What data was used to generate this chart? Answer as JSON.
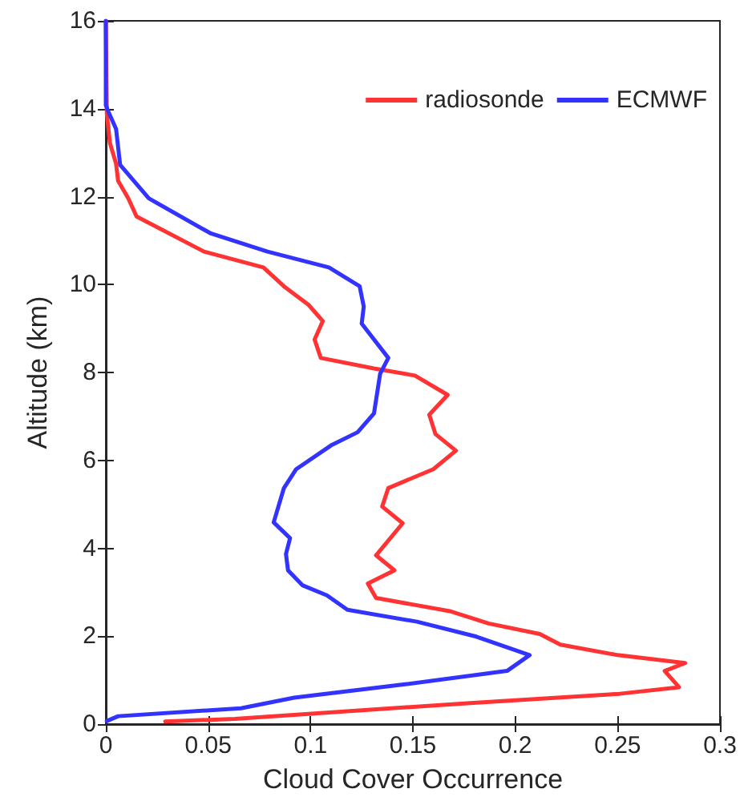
{
  "chart_data": {
    "type": "line",
    "xlabel": "Cloud Cover Occurrence",
    "ylabel": "Altitude (km)",
    "xlim": [
      0,
      0.3
    ],
    "xticks": [
      0,
      0.05,
      0.1,
      0.15,
      0.2,
      0.25,
      0.3
    ],
    "ylim": [
      0,
      16
    ],
    "yticks": [
      0,
      2,
      4,
      6,
      8,
      10,
      12,
      14,
      16
    ],
    "legend": "top right",
    "grid": false,
    "marker": "none",
    "line_style": "solid",
    "series": [
      {
        "name": "radiosonde",
        "color": "#ff3333",
        "x": [
          0.029,
          0.063,
          0.178,
          0.251,
          0.28,
          0.273,
          0.283,
          0.25,
          0.222,
          0.212,
          0.187,
          0.168,
          0.132,
          0.128,
          0.141,
          0.132,
          0.145,
          0.135,
          0.138,
          0.16,
          0.171,
          0.161,
          0.158,
          0.167,
          0.151,
          0.131,
          0.105,
          0.102,
          0.106,
          0.099,
          0.087,
          0.077,
          0.048,
          0.015,
          0.011,
          0.006,
          0.005,
          0.002,
          0.0005,
          0
        ],
        "values": [
          0.06,
          0.12,
          0.48,
          0.69,
          0.84,
          1.21,
          1.39,
          1.57,
          1.81,
          2.05,
          2.29,
          2.57,
          2.87,
          3.2,
          3.5,
          3.84,
          4.57,
          4.95,
          5.37,
          5.8,
          6.22,
          6.6,
          7.04,
          7.49,
          7.93,
          8.09,
          8.33,
          8.75,
          9.17,
          9.54,
          9.96,
          10.39,
          10.75,
          11.55,
          11.96,
          12.36,
          12.75,
          13.22,
          13.88,
          16
        ]
      },
      {
        "name": "ECMWF",
        "color": "#3333ff",
        "x": [
          0.0005,
          0.006,
          0.066,
          0.092,
          0.147,
          0.196,
          0.207,
          0.181,
          0.152,
          0.118,
          0.108,
          0.096,
          0.089,
          0.088,
          0.09,
          0.082,
          0.087,
          0.093,
          0.11,
          0.123,
          0.131,
          0.134,
          0.138,
          0.125,
          0.126,
          0.124,
          0.109,
          0.079,
          0.051,
          0.021,
          0.007,
          0.005,
          0.001,
          0,
          0
        ],
        "values": [
          0.07,
          0.18,
          0.36,
          0.6,
          0.91,
          1.21,
          1.57,
          1.99,
          2.33,
          2.6,
          2.93,
          3.16,
          3.5,
          3.87,
          4.23,
          4.59,
          5.37,
          5.8,
          6.34,
          6.64,
          7.07,
          7.97,
          8.33,
          9.11,
          9.5,
          9.96,
          10.39,
          10.75,
          11.17,
          11.96,
          12.72,
          13.54,
          13.96,
          14.08,
          16
        ]
      }
    ]
  }
}
